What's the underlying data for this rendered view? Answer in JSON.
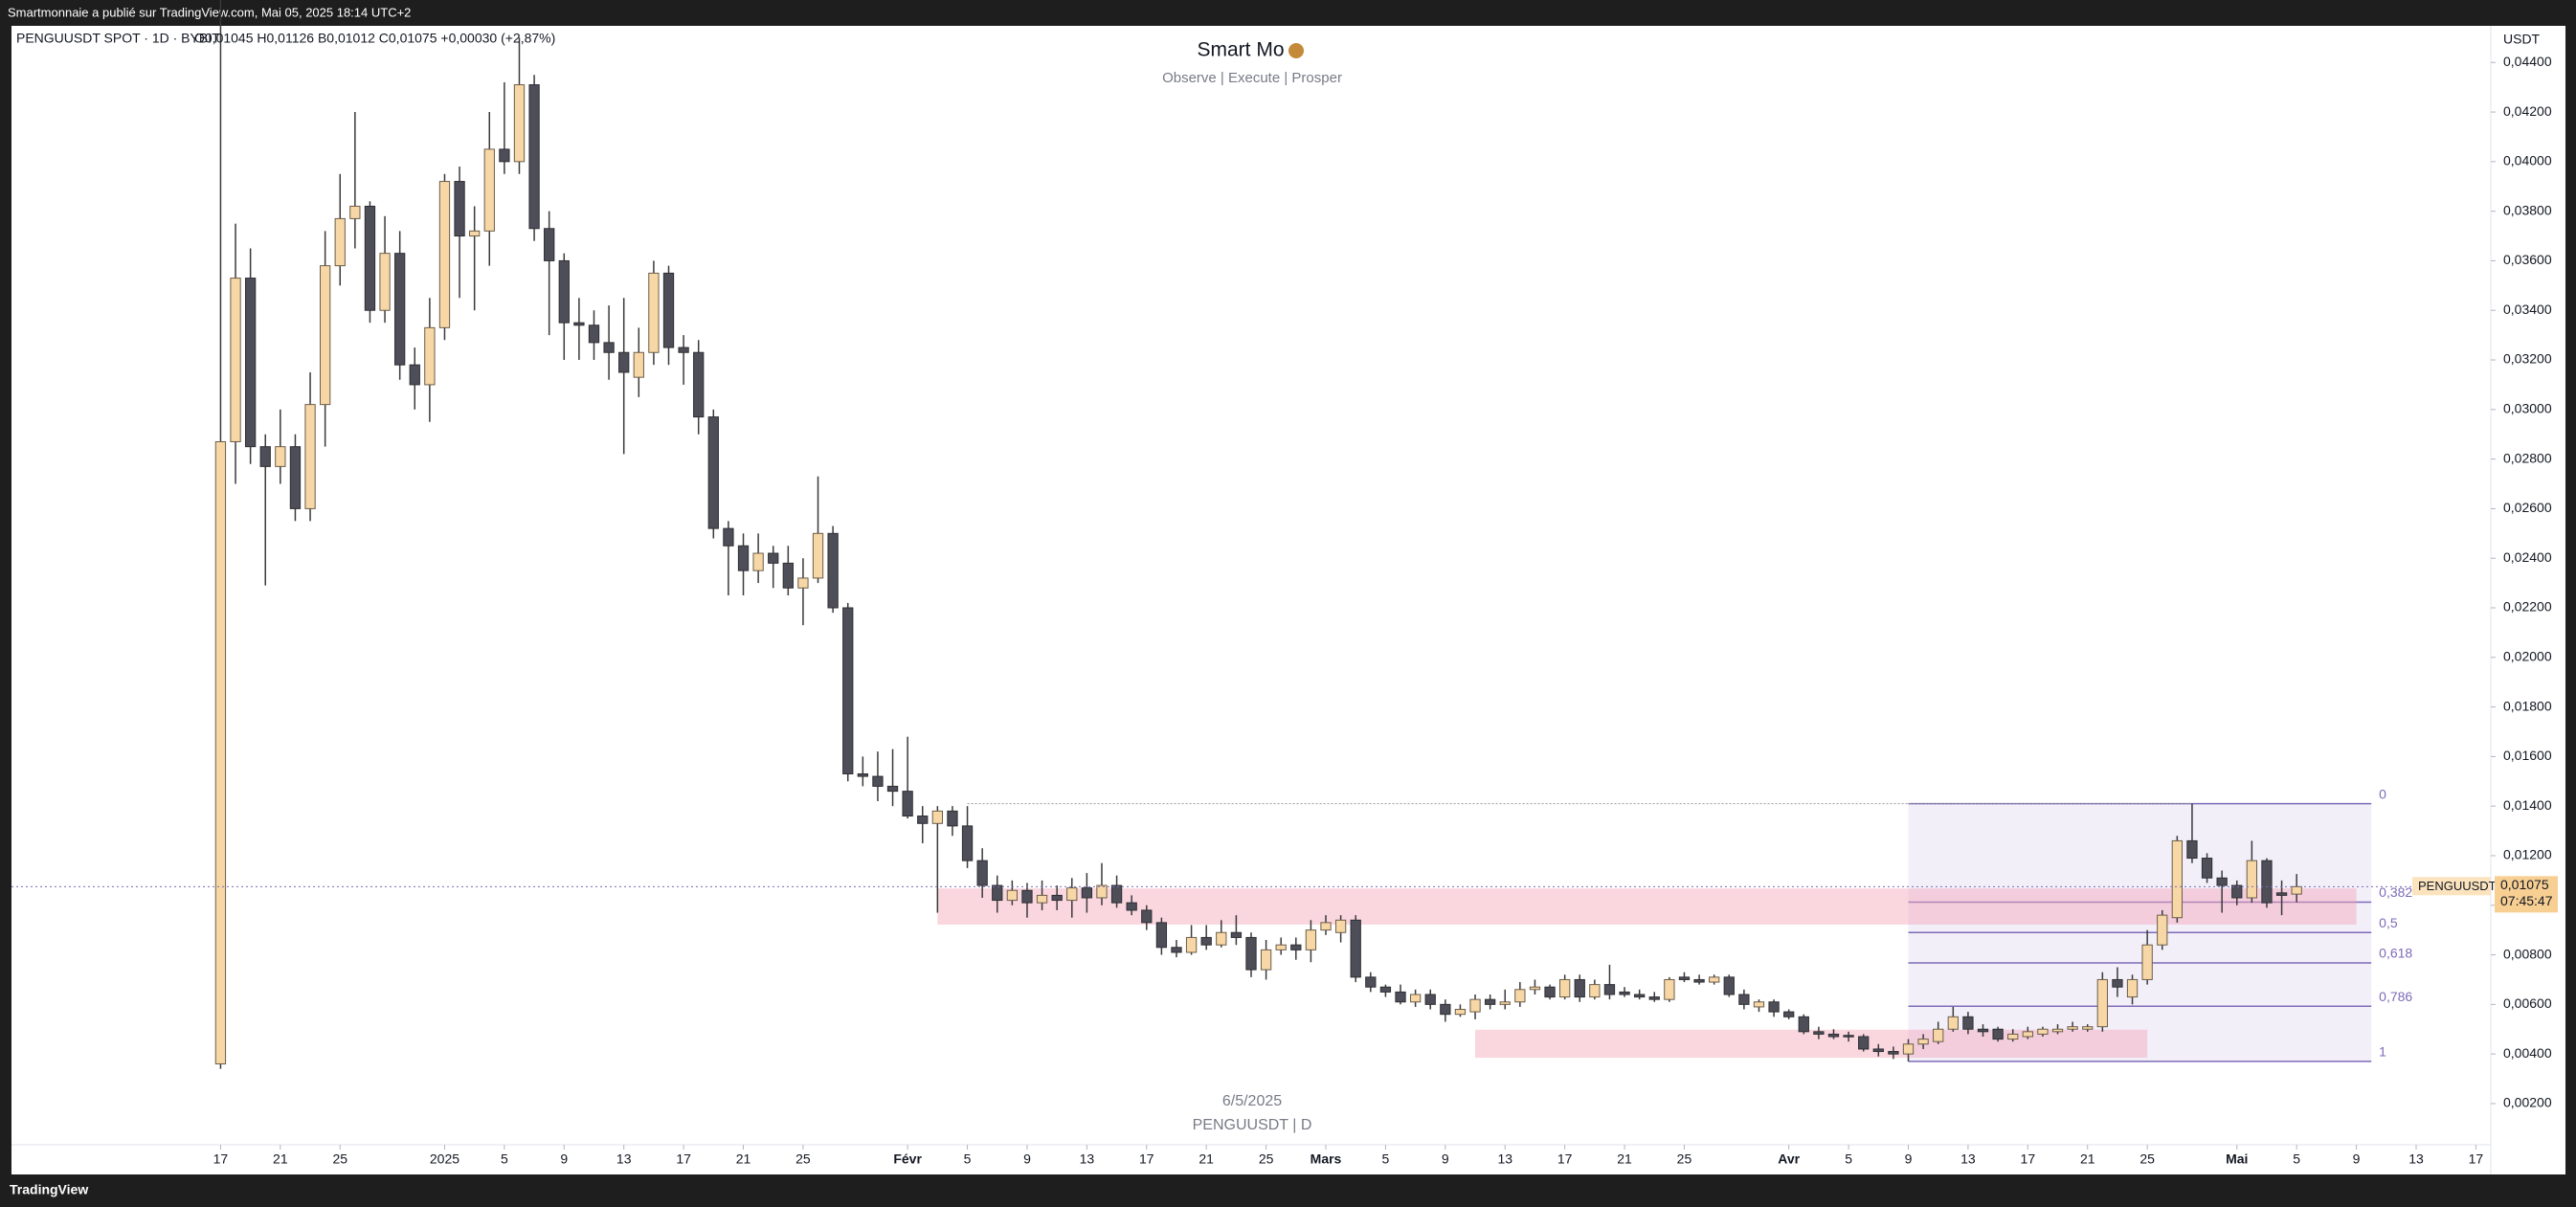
{
  "top_bar": "Smartmonnaie a publié sur TradingView.com, Mai 05, 2025 18:14 UTC+2",
  "footer": "TradingView",
  "chart_data": {
    "type": "candlestick",
    "symbol": "PENGUUSDT SPOT · 1D · BYBIT",
    "legend": "O0,01045 H0,01126 B0,01012 C0,01075 +0,00030 (+2,87%)",
    "title": "Smart Mo",
    "subtitle": "Observe |  Execute |  Prosper",
    "watermark": [
      "6/5/2025",
      "PENGUUSDT | D"
    ],
    "currency": "USDT",
    "price_tag": "PENGUUSDT",
    "last_price": {
      "value": 0.01075,
      "label": "0,01075"
    },
    "countdown": "07:45:47",
    "x": [
      "2024-12-17",
      "2024-12-18",
      "2024-12-19",
      "2024-12-20",
      "2024-12-21",
      "2024-12-22",
      "2024-12-23",
      "2024-12-24",
      "2024-12-25",
      "2024-12-26",
      "2024-12-27",
      "2024-12-28",
      "2024-12-29",
      "2024-12-30",
      "2024-12-31",
      "2025-01-01",
      "2025-01-02",
      "2025-01-03",
      "2025-01-04",
      "2025-01-05",
      "2025-01-06",
      "2025-01-07",
      "2025-01-08",
      "2025-01-09",
      "2025-01-10",
      "2025-01-11",
      "2025-01-12",
      "2025-01-13",
      "2025-01-14",
      "2025-01-15",
      "2025-01-16",
      "2025-01-17",
      "2025-01-18",
      "2025-01-19",
      "2025-01-20",
      "2025-01-21",
      "2025-01-22",
      "2025-01-23",
      "2025-01-24",
      "2025-01-25",
      "2025-01-26",
      "2025-01-27",
      "2025-01-28",
      "2025-01-29",
      "2025-01-30",
      "2025-01-31",
      "2025-02-01",
      "2025-02-02",
      "2025-02-03",
      "2025-02-04",
      "2025-02-05",
      "2025-02-06",
      "2025-02-07",
      "2025-02-08",
      "2025-02-09",
      "2025-02-10",
      "2025-02-11",
      "2025-02-12",
      "2025-02-13",
      "2025-02-14",
      "2025-02-15",
      "2025-02-16",
      "2025-02-17",
      "2025-02-18",
      "2025-02-19",
      "2025-02-20",
      "2025-02-21",
      "2025-02-22",
      "2025-02-23",
      "2025-02-24",
      "2025-02-25",
      "2025-02-26",
      "2025-02-27",
      "2025-02-28",
      "2025-03-01",
      "2025-03-02",
      "2025-03-03",
      "2025-03-04",
      "2025-03-05",
      "2025-03-06",
      "2025-03-07",
      "2025-03-08",
      "2025-03-09",
      "2025-03-10",
      "2025-03-11",
      "2025-03-12",
      "2025-03-13",
      "2025-03-14",
      "2025-03-15",
      "2025-03-16",
      "2025-03-17",
      "2025-03-18",
      "2025-03-19",
      "2025-03-20",
      "2025-03-21",
      "2025-03-22",
      "2025-03-23",
      "2025-03-24",
      "2025-03-25",
      "2025-03-26",
      "2025-03-27",
      "2025-03-28",
      "2025-03-29",
      "2025-03-30",
      "2025-03-31",
      "2025-04-01",
      "2025-04-02",
      "2025-04-03",
      "2025-04-04",
      "2025-04-05",
      "2025-04-06",
      "2025-04-07",
      "2025-04-08",
      "2025-04-09",
      "2025-04-10",
      "2025-04-11",
      "2025-04-12",
      "2025-04-13",
      "2025-04-14",
      "2025-04-15",
      "2025-04-16",
      "2025-04-17",
      "2025-04-18",
      "2025-04-19",
      "2025-04-20",
      "2025-04-21",
      "2025-04-22",
      "2025-04-23",
      "2025-04-24",
      "2025-04-25",
      "2025-04-26",
      "2025-04-27",
      "2025-04-28",
      "2025-04-29",
      "2025-04-30",
      "2025-05-01",
      "2025-05-02",
      "2025-05-03",
      "2025-05-04",
      "2025-05-05"
    ],
    "open": [
      0.0036,
      0.0287,
      0.0353,
      0.0285,
      0.0277,
      0.0285,
      0.026,
      0.0302,
      0.0358,
      0.0377,
      0.0382,
      0.034,
      0.0363,
      0.0318,
      0.031,
      0.0333,
      0.0392,
      0.037,
      0.0372,
      0.0405,
      0.04,
      0.0431,
      0.0373,
      0.036,
      0.0335,
      0.0334,
      0.0327,
      0.0323,
      0.0313,
      0.0323,
      0.0355,
      0.0325,
      0.0323,
      0.0297,
      0.0252,
      0.0245,
      0.0235,
      0.0242,
      0.0238,
      0.0228,
      0.0232,
      0.025,
      0.022,
      0.0153,
      0.0152,
      0.0148,
      0.0146,
      0.0136,
      0.0133,
      0.0138,
      0.0132,
      0.0118,
      0.0108,
      0.0102,
      0.0106,
      0.0101,
      0.0104,
      0.0102,
      0.0107,
      0.0103,
      0.0108,
      0.0101,
      0.0098,
      0.0093,
      0.0083,
      0.0081,
      0.0087,
      0.0084,
      0.0089,
      0.0087,
      0.0074,
      0.0082,
      0.0084,
      0.0082,
      0.009,
      0.0089,
      0.0094,
      0.0071,
      0.0067,
      0.0065,
      0.0061,
      0.0064,
      0.006,
      0.0056,
      0.0057,
      0.0062,
      0.006,
      0.0061,
      0.0066,
      0.0067,
      0.0063,
      0.007,
      0.0063,
      0.0068,
      0.0065,
      0.0064,
      0.0063,
      0.0062,
      0.0071,
      0.007,
      0.0069,
      0.0071,
      0.0064,
      0.0059,
      0.0061,
      0.0057,
      0.0055,
      0.0049,
      0.0048,
      0.00475,
      0.0047,
      0.0042,
      0.0041,
      0.004,
      0.0044,
      0.0045,
      0.005,
      0.0055,
      0.005,
      0.005,
      0.0046,
      0.0047,
      0.0048,
      0.0049,
      0.005,
      0.005,
      0.0051,
      0.007,
      0.0063,
      0.007,
      0.0084,
      0.0095,
      0.0126,
      0.0119,
      0.0111,
      0.0108,
      0.0103,
      0.0118,
      0.0105,
      0.01045
    ],
    "high": [
      0.048,
      0.0375,
      0.0365,
      0.029,
      0.03,
      0.029,
      0.0315,
      0.0372,
      0.0395,
      0.042,
      0.0384,
      0.0378,
      0.0372,
      0.0325,
      0.0345,
      0.0395,
      0.0398,
      0.0382,
      0.042,
      0.0432,
      0.045,
      0.0435,
      0.038,
      0.0363,
      0.0345,
      0.034,
      0.0342,
      0.0345,
      0.0333,
      0.036,
      0.0358,
      0.033,
      0.0328,
      0.03,
      0.0255,
      0.025,
      0.025,
      0.0245,
      0.0245,
      0.024,
      0.0273,
      0.0253,
      0.0222,
      0.016,
      0.0162,
      0.0163,
      0.0168,
      0.014,
      0.014,
      0.014,
      0.014,
      0.0123,
      0.0112,
      0.011,
      0.0109,
      0.011,
      0.0108,
      0.0111,
      0.0113,
      0.0117,
      0.0112,
      0.0104,
      0.01,
      0.0095,
      0.0086,
      0.0092,
      0.0092,
      0.0094,
      0.0096,
      0.0089,
      0.0086,
      0.0087,
      0.0087,
      0.0094,
      0.0096,
      0.0096,
      0.0096,
      0.0073,
      0.0068,
      0.0068,
      0.0066,
      0.0066,
      0.0062,
      0.006,
      0.0064,
      0.0064,
      0.0066,
      0.0069,
      0.007,
      0.0068,
      0.0072,
      0.0072,
      0.007,
      0.0076,
      0.0067,
      0.0066,
      0.0065,
      0.0071,
      0.0073,
      0.0072,
      0.0072,
      0.0072,
      0.0066,
      0.0062,
      0.0062,
      0.0058,
      0.0056,
      0.0051,
      0.005,
      0.0049,
      0.0048,
      0.0044,
      0.0043,
      0.0046,
      0.0048,
      0.0053,
      0.0059,
      0.0057,
      0.0052,
      0.0051,
      0.005,
      0.0051,
      0.0051,
      0.0052,
      0.0053,
      0.0052,
      0.0073,
      0.0075,
      0.0072,
      0.009,
      0.0098,
      0.0128,
      0.0141,
      0.0121,
      0.0114,
      0.011,
      0.0126,
      0.0119,
      0.011,
      0.01126
    ],
    "low": [
      0.0034,
      0.027,
      0.0278,
      0.0229,
      0.027,
      0.0255,
      0.0255,
      0.0285,
      0.035,
      0.0365,
      0.0335,
      0.0335,
      0.0312,
      0.03,
      0.0295,
      0.0328,
      0.0345,
      0.034,
      0.0358,
      0.0395,
      0.0395,
      0.0368,
      0.033,
      0.032,
      0.032,
      0.032,
      0.0312,
      0.0282,
      0.0305,
      0.0318,
      0.0318,
      0.031,
      0.029,
      0.0248,
      0.0225,
      0.0225,
      0.023,
      0.0228,
      0.0225,
      0.0213,
      0.023,
      0.0218,
      0.015,
      0.0148,
      0.0142,
      0.014,
      0.0135,
      0.0125,
      0.0097,
      0.0128,
      0.0115,
      0.0103,
      0.0097,
      0.01,
      0.0095,
      0.0098,
      0.0098,
      0.0095,
      0.0097,
      0.01,
      0.0099,
      0.0096,
      0.009,
      0.008,
      0.0079,
      0.008,
      0.0082,
      0.0083,
      0.0084,
      0.0071,
      0.007,
      0.008,
      0.0078,
      0.0077,
      0.0088,
      0.0085,
      0.0069,
      0.0065,
      0.0063,
      0.006,
      0.0059,
      0.0058,
      0.0053,
      0.0055,
      0.0054,
      0.0058,
      0.0058,
      0.0059,
      0.0064,
      0.0062,
      0.0062,
      0.0061,
      0.0062,
      0.0062,
      0.0063,
      0.0062,
      0.0061,
      0.0061,
      0.0069,
      0.0068,
      0.0068,
      0.0063,
      0.0058,
      0.0057,
      0.0055,
      0.0054,
      0.0048,
      0.0046,
      0.0046,
      0.0045,
      0.0041,
      0.0039,
      0.0038,
      0.0037,
      0.0042,
      0.0044,
      0.0049,
      0.0048,
      0.0047,
      0.0045,
      0.0045,
      0.0046,
      0.0047,
      0.0048,
      0.0049,
      0.0049,
      0.0049,
      0.0063,
      0.006,
      0.0068,
      0.0082,
      0.0093,
      0.0117,
      0.0109,
      0.0097,
      0.01,
      0.0101,
      0.0099,
      0.0096,
      0.01012
    ],
    "close": [
      0.0287,
      0.0353,
      0.0285,
      0.0277,
      0.0285,
      0.026,
      0.0302,
      0.0358,
      0.0377,
      0.0382,
      0.034,
      0.0363,
      0.0318,
      0.031,
      0.0333,
      0.0392,
      0.037,
      0.0372,
      0.0405,
      0.04,
      0.0431,
      0.0373,
      0.036,
      0.0335,
      0.0334,
      0.0327,
      0.0323,
      0.0315,
      0.0323,
      0.0355,
      0.0325,
      0.0323,
      0.0297,
      0.0252,
      0.0245,
      0.0235,
      0.0242,
      0.0238,
      0.0228,
      0.0232,
      0.025,
      0.022,
      0.0153,
      0.0152,
      0.0148,
      0.0146,
      0.0136,
      0.0133,
      0.0138,
      0.0132,
      0.0118,
      0.0108,
      0.0102,
      0.0106,
      0.0101,
      0.0104,
      0.0102,
      0.0107,
      0.0103,
      0.0108,
      0.0101,
      0.0098,
      0.0093,
      0.0083,
      0.0081,
      0.0087,
      0.0084,
      0.0089,
      0.0087,
      0.0074,
      0.0082,
      0.0084,
      0.0082,
      0.009,
      0.0093,
      0.0094,
      0.0071,
      0.0067,
      0.0065,
      0.0061,
      0.0064,
      0.006,
      0.0056,
      0.0058,
      0.0062,
      0.006,
      0.0061,
      0.0066,
      0.0067,
      0.0063,
      0.007,
      0.0063,
      0.0068,
      0.0064,
      0.0064,
      0.0063,
      0.0062,
      0.007,
      0.007,
      0.0069,
      0.0071,
      0.0064,
      0.006,
      0.0061,
      0.0057,
      0.0055,
      0.0049,
      0.0048,
      0.0047,
      0.0047,
      0.0042,
      0.0041,
      0.004,
      0.0044,
      0.0046,
      0.005,
      0.0055,
      0.005,
      0.0049,
      0.0046,
      0.0048,
      0.0049,
      0.005,
      0.005,
      0.0051,
      0.0051,
      0.007,
      0.0067,
      0.007,
      0.0084,
      0.0096,
      0.0126,
      0.0119,
      0.0111,
      0.0108,
      0.0103,
      0.0118,
      0.0101,
      0.0104,
      0.01075
    ],
    "bull_color": "#f7d7a6",
    "bear_color": "#4e4e58",
    "wick_color": "#3a3a3a",
    "xlim": [
      "2024-12-03",
      "2025-05-18"
    ],
    "ylim": [
      -0.00086,
      0.0454
    ],
    "xticks": [
      {
        "value": "2024-12-17",
        "label": "17"
      },
      {
        "value": "2024-12-21",
        "label": "21"
      },
      {
        "value": "2024-12-25",
        "label": "25"
      },
      {
        "value": "2025-01-01",
        "label": "2025"
      },
      {
        "value": "2025-01-05",
        "label": "5"
      },
      {
        "value": "2025-01-09",
        "label": "9"
      },
      {
        "value": "2025-01-13",
        "label": "13"
      },
      {
        "value": "2025-01-17",
        "label": "17"
      },
      {
        "value": "2025-01-21",
        "label": "21"
      },
      {
        "value": "2025-01-25",
        "label": "25"
      },
      {
        "value": "2025-02-01",
        "label": "Févr"
      },
      {
        "value": "2025-02-05",
        "label": "5"
      },
      {
        "value": "2025-02-09",
        "label": "9"
      },
      {
        "value": "2025-02-13",
        "label": "13"
      },
      {
        "value": "2025-02-17",
        "label": "17"
      },
      {
        "value": "2025-02-21",
        "label": "21"
      },
      {
        "value": "2025-02-25",
        "label": "25"
      },
      {
        "value": "2025-03-01",
        "label": "Mars"
      },
      {
        "value": "2025-03-05",
        "label": "5"
      },
      {
        "value": "2025-03-09",
        "label": "9"
      },
      {
        "value": "2025-03-13",
        "label": "13"
      },
      {
        "value": "2025-03-17",
        "label": "17"
      },
      {
        "value": "2025-03-21",
        "label": "21"
      },
      {
        "value": "2025-03-25",
        "label": "25"
      },
      {
        "value": "2025-04-01",
        "label": "Avr"
      },
      {
        "value": "2025-04-05",
        "label": "5"
      },
      {
        "value": "2025-04-09",
        "label": "9"
      },
      {
        "value": "2025-04-13",
        "label": "13"
      },
      {
        "value": "2025-04-17",
        "label": "17"
      },
      {
        "value": "2025-04-21",
        "label": "21"
      },
      {
        "value": "2025-04-25",
        "label": "25"
      },
      {
        "value": "2025-05-01",
        "label": "Mai"
      },
      {
        "value": "2025-05-05",
        "label": "5"
      },
      {
        "value": "2025-05-09",
        "label": "9"
      },
      {
        "value": "2025-05-13",
        "label": "13"
      },
      {
        "value": "2025-05-17",
        "label": "17"
      }
    ],
    "yticks": [
      {
        "value": 0.002,
        "label": "0,00200"
      },
      {
        "value": 0.004,
        "label": "0,00400"
      },
      {
        "value": 0.006,
        "label": "0,00600"
      },
      {
        "value": 0.008,
        "label": "0,00800"
      },
      {
        "value": 0.01,
        "label": "0,01000"
      },
      {
        "value": 0.012,
        "label": "0,01200"
      },
      {
        "value": 0.014,
        "label": "0,01400"
      },
      {
        "value": 0.016,
        "label": "0,01600"
      },
      {
        "value": 0.018,
        "label": "0,01800"
      },
      {
        "value": 0.02,
        "label": "0,02000"
      },
      {
        "value": 0.022,
        "label": "0,02200"
      },
      {
        "value": 0.024,
        "label": "0,02400"
      },
      {
        "value": 0.026,
        "label": "0,02600"
      },
      {
        "value": 0.028,
        "label": "0,02800"
      },
      {
        "value": 0.03,
        "label": "0,03000"
      },
      {
        "value": 0.032,
        "label": "0,03200"
      },
      {
        "value": 0.034,
        "label": "0,03400"
      },
      {
        "value": 0.036,
        "label": "0,03600"
      },
      {
        "value": 0.038,
        "label": "0,03800"
      },
      {
        "value": 0.04,
        "label": "0,04000"
      },
      {
        "value": 0.042,
        "label": "0,04200"
      },
      {
        "value": 0.044,
        "label": "0,04400"
      }
    ],
    "zones": [
      {
        "from": "2025-02-03",
        "to": "2025-05-09",
        "top": 0.01068,
        "bottom": 0.00922
      },
      {
        "from": "2025-03-11",
        "to": "2025-04-25",
        "top": 0.00498,
        "bottom": 0.00385
      }
    ],
    "level_line": {
      "from": "2025-02-05",
      "to": "2025-04-28",
      "value": 0.0141
    },
    "fib": {
      "from": "2025-04-09",
      "to": "2025-05-10",
      "start": 0.0141,
      "end": 0.0037,
      "levels": [
        {
          "value": 0,
          "label": "0"
        },
        {
          "value": 0.382,
          "label": "0,382"
        },
        {
          "value": 0.5,
          "label": "0,5"
        },
        {
          "value": 0.618,
          "label": "0,618"
        },
        {
          "value": 0.786,
          "label": "0,786"
        },
        {
          "value": 1,
          "label": "1"
        }
      ]
    }
  }
}
